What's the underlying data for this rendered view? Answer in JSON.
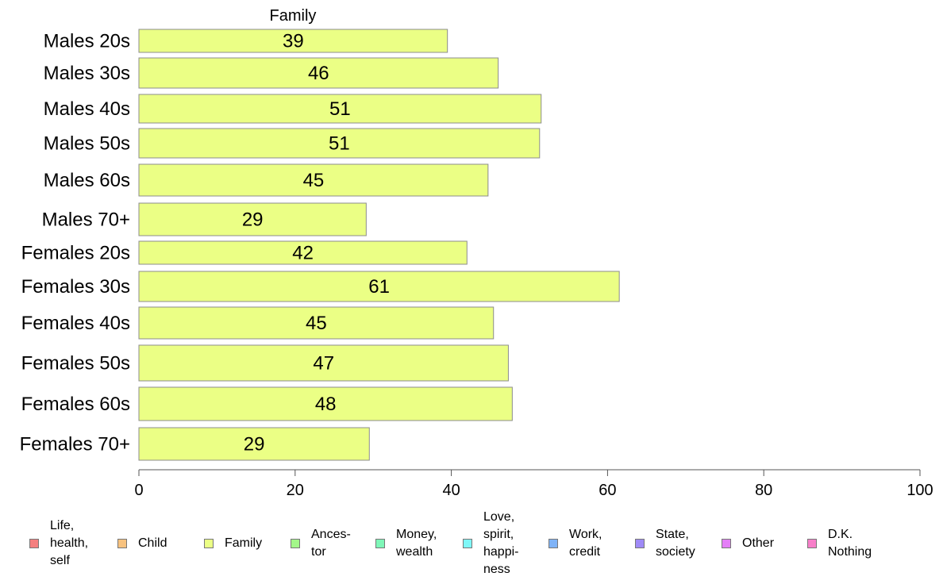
{
  "chart_data": {
    "type": "bar",
    "orientation": "horizontal",
    "title": "Family",
    "categories": [
      "Males 20s",
      "Males 30s",
      "Males 40s",
      "Males 50s",
      "Males 60s",
      "Males 70+",
      "Females 20s",
      "Females 30s",
      "Females 40s",
      "Females 50s",
      "Females 60s",
      "Females 70+"
    ],
    "values": [
      39.5,
      46.0,
      51.5,
      51.3,
      44.7,
      29.1,
      42.0,
      61.5,
      45.4,
      47.3,
      47.8,
      29.5
    ],
    "value_labels": [
      "39",
      "46",
      "51",
      "51",
      "45",
      "29",
      "42",
      "61",
      "45",
      "47",
      "48",
      "29"
    ],
    "xlim": [
      0,
      100
    ],
    "xticks": [
      0,
      20,
      40,
      60,
      80,
      100
    ],
    "xlabel": "",
    "ylabel": "",
    "grid": false,
    "bar_color": "#ebff85",
    "legend_position": "bottom",
    "legend": [
      {
        "label": "Life,\nhealth,\nself",
        "color": "#f47f7f"
      },
      {
        "label": "Child",
        "color": "#f7c27f"
      },
      {
        "label": "Family",
        "color": "#ebff85"
      },
      {
        "label": "Ances-\ntor",
        "color": "#a3f78a"
      },
      {
        "label": "Money,\nwealth",
        "color": "#7ff7b8"
      },
      {
        "label": "Love,\nspirit,\nhappi-\nness",
        "color": "#7ff7f7"
      },
      {
        "label": "Work,\ncredit",
        "color": "#7fb3f7"
      },
      {
        "label": "State,\nsociety",
        "color": "#9f8af7"
      },
      {
        "label": "Other",
        "color": "#e47ff7"
      },
      {
        "label": "D.K.\nNothing",
        "color": "#f77fc9"
      }
    ]
  }
}
